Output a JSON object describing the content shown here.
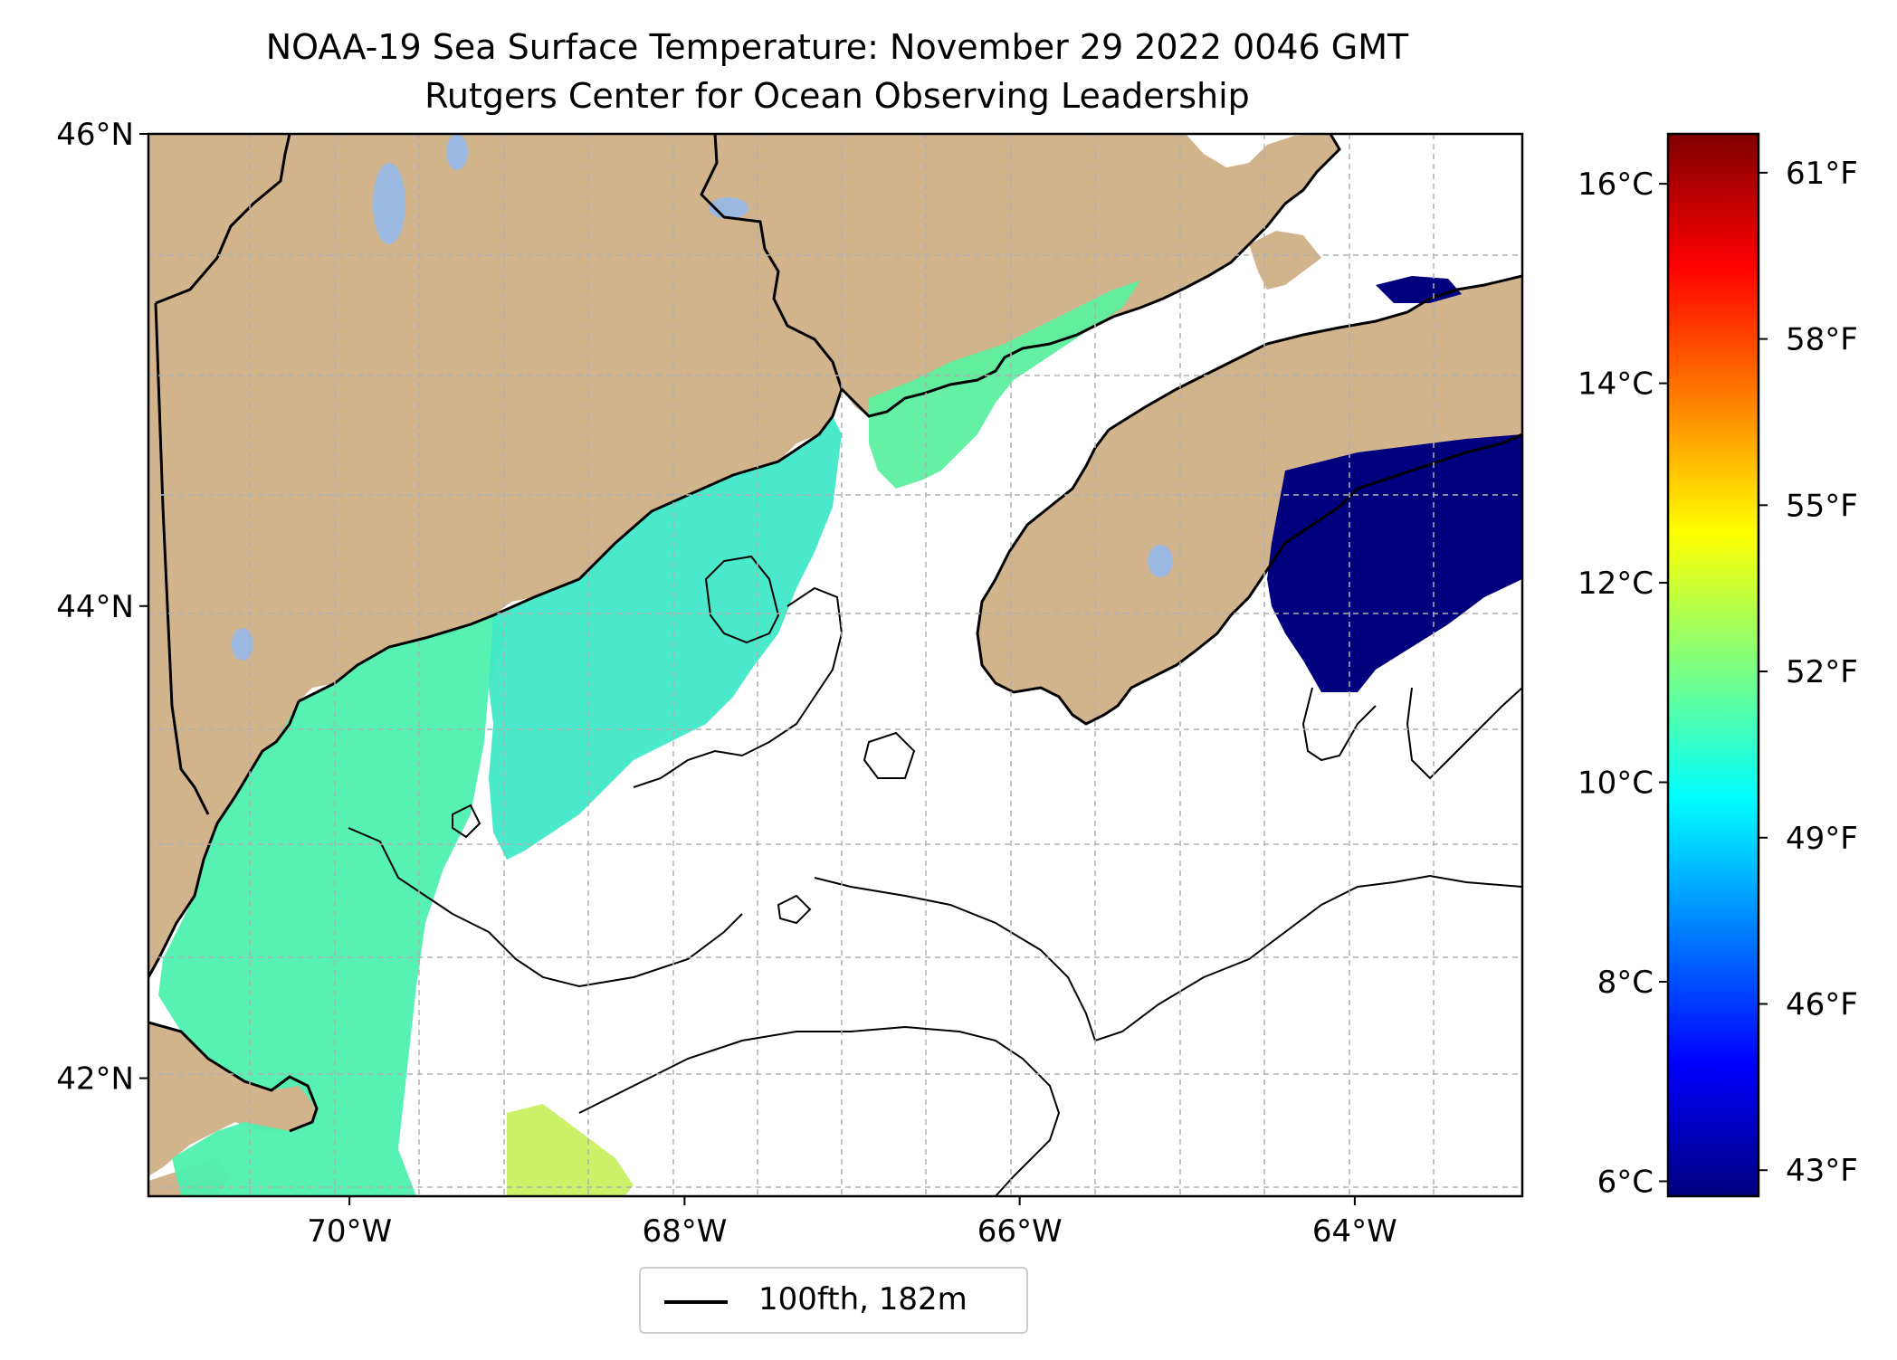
{
  "title": {
    "line1": "NOAA-19 Sea Surface Temperature: November 29 2022 0046 GMT",
    "line2": "Rutgers Center for Ocean Observing Leadership"
  },
  "map": {
    "lat_ticks": [
      {
        "label": "46°N",
        "value": 46
      },
      {
        "label": "44°N",
        "value": 44
      },
      {
        "label": "42°N",
        "value": 42
      }
    ],
    "lon_ticks": [
      {
        "label": "70°W",
        "value": -70
      },
      {
        "label": "68°W",
        "value": -68
      },
      {
        "label": "66°W",
        "value": -66
      },
      {
        "label": "64°W",
        "value": -64
      }
    ],
    "lon_range": [
      -71.2,
      -63.0
    ],
    "lat_range": [
      41.5,
      46.0
    ],
    "colors": {
      "land": "#d2b48c",
      "lakes": "#9bb8e0",
      "ocean_nodata": "#ffffff",
      "grid": "#b0b0b0"
    }
  },
  "legend": {
    "label": "100fth, 182m",
    "line_color": "#000000"
  },
  "colorbar": {
    "celsius_ticks": [
      {
        "label": "16°C",
        "value": 16
      },
      {
        "label": "14°C",
        "value": 14
      },
      {
        "label": "12°C",
        "value": 12
      },
      {
        "label": "10°C",
        "value": 10
      },
      {
        "label": "8°C",
        "value": 8
      },
      {
        "label": "6°C",
        "value": 6
      }
    ],
    "fahrenheit_ticks": [
      {
        "label": "61°F",
        "value": 61
      },
      {
        "label": "58°F",
        "value": 58
      },
      {
        "label": "55°F",
        "value": 55
      },
      {
        "label": "52°F",
        "value": 52
      },
      {
        "label": "49°F",
        "value": 49
      },
      {
        "label": "46°F",
        "value": 46
      },
      {
        "label": "43°F",
        "value": 43
      }
    ],
    "range_c": [
      5.85,
      16.5
    ],
    "colormap": [
      "#00007f",
      "#0000ff",
      "#007fff",
      "#00ffff",
      "#7fff7f",
      "#ffff00",
      "#ff7f00",
      "#ff0000",
      "#7f0000"
    ]
  }
}
